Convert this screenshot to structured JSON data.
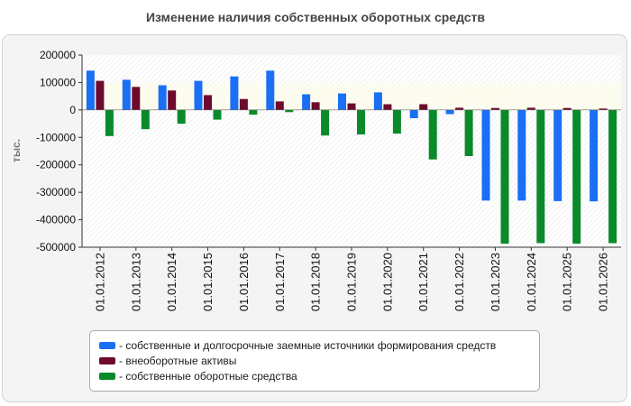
{
  "chart_data": {
    "type": "bar",
    "title": "Изменение наличия собственных оборотных средств",
    "ylabel": "тыс.",
    "xlabel": "",
    "ylim": [
      -500000,
      200000
    ],
    "yticks": [
      200000,
      100000,
      0,
      -100000,
      -200000,
      -300000,
      -400000,
      -500000
    ],
    "grid": false,
    "legend_position": "bottom",
    "categories": [
      "01.01.2012",
      "01.01.2013",
      "01.01.2014",
      "01.01.2015",
      "01.01.2016",
      "01.01.2017",
      "01.01.2018",
      "01.01.2019",
      "01.01.2020",
      "01.01.2021",
      "01.01.2022",
      "01.01.2023",
      "01.01.2024",
      "01.01.2025",
      "01.01.2026"
    ],
    "series": [
      {
        "name": "- собственные и долгосрочные заемные источники формирования средств",
        "color": "#1a6ff5",
        "values": [
          143000,
          110000,
          90000,
          106000,
          122000,
          143000,
          57000,
          60000,
          64000,
          -30000,
          -15000,
          -330000,
          -330000,
          -332000,
          -333000
        ]
      },
      {
        "name": "- внеоборотные активы",
        "color": "#6e0a2e",
        "values": [
          106000,
          84000,
          71000,
          54000,
          40000,
          31000,
          28000,
          24000,
          21000,
          21000,
          8000,
          7000,
          8000,
          7000,
          5000
        ]
      },
      {
        "name": "- собственные оборотные средства",
        "color": "#0a8a2b",
        "values": [
          -95000,
          -70000,
          -50000,
          -35000,
          -17000,
          -8000,
          -93000,
          -89000,
          -86000,
          -180000,
          -168000,
          -487000,
          -485000,
          -487000,
          -485000
        ]
      }
    ]
  }
}
